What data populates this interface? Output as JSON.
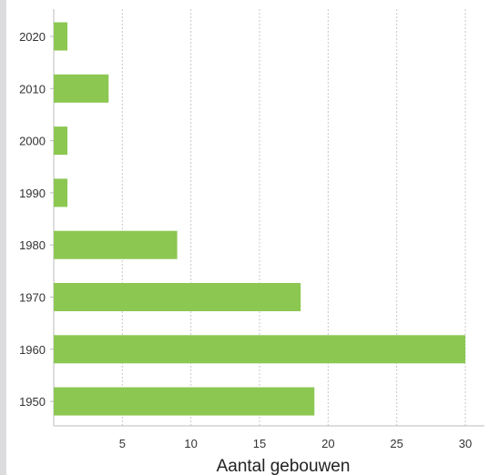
{
  "chart_data": {
    "type": "bar",
    "orientation": "horizontal",
    "categories": [
      "2020",
      "2010",
      "2000",
      "1990",
      "1980",
      "1970",
      "1960",
      "1950"
    ],
    "values": [
      1,
      4,
      1,
      1,
      9,
      18,
      30,
      19
    ],
    "xlabel": "Aantal gebouwen",
    "ylabel": "",
    "xlim": [
      0,
      31.5
    ],
    "xticks": [
      5,
      10,
      15,
      20,
      25,
      30
    ],
    "grid": "vertical-dotted",
    "legend": "none",
    "bar_color": "#8bc751",
    "grid_color": "#c8c8c8",
    "axis_color": "#bbbbbb"
  }
}
